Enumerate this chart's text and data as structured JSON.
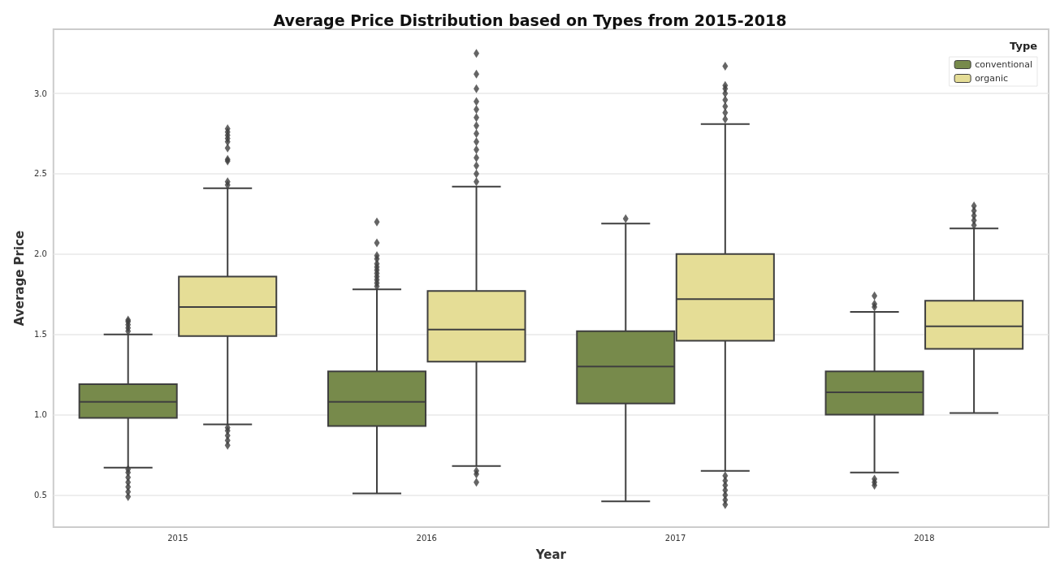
{
  "chart_data": {
    "type": "box",
    "title": "Average Price Distribution based on Types from 2015-2018",
    "xlabel": "Year",
    "ylabel": "Average Price",
    "legend_title": "Type",
    "categories": [
      "2015",
      "2016",
      "2017",
      "2018"
    ],
    "ylim": [
      0.3,
      3.4
    ],
    "yticks": [
      0.5,
      {
        "value": 1,
        "label": "1.0"
      },
      1.5,
      {
        "value": 2,
        "label": "2.0"
      },
      2.5,
      {
        "value": 3,
        "label": "3.0"
      }
    ],
    "grid": "y",
    "legend": "top right",
    "marker": "diamond",
    "series": [
      {
        "name": "conventional",
        "color": "#778a4b",
        "boxes": [
          {
            "low": 0.67,
            "q1": 0.98,
            "median": 1.08,
            "q3": 1.19,
            "high": 1.5,
            "outliers": [
              0.49,
              0.52,
              0.55,
              0.58,
              0.61,
              0.64,
              0.66,
              1.52,
              1.54,
              1.56,
              1.58,
              1.59
            ]
          },
          {
            "low": 0.51,
            "q1": 0.93,
            "median": 1.08,
            "q3": 1.27,
            "high": 1.78,
            "outliers": [
              1.8,
              1.82,
              1.84,
              1.86,
              1.88,
              1.9,
              1.92,
              1.94,
              1.97,
              1.99,
              2.07,
              2.2
            ]
          },
          {
            "low": 0.46,
            "q1": 1.07,
            "median": 1.3,
            "q3": 1.52,
            "high": 2.19,
            "outliers": [
              2.22
            ]
          },
          {
            "low": 0.64,
            "q1": 1.0,
            "median": 1.14,
            "q3": 1.27,
            "high": 1.64,
            "outliers": [
              0.56,
              0.58,
              0.6,
              1.67,
              1.69,
              1.74
            ]
          }
        ]
      },
      {
        "name": "organic",
        "color": "#e5dd96",
        "boxes": [
          {
            "low": 0.94,
            "q1": 1.49,
            "median": 1.67,
            "q3": 1.86,
            "high": 2.41,
            "outliers": [
              0.81,
              0.84,
              0.87,
              0.9,
              0.92,
              2.43,
              2.45,
              2.58,
              2.59,
              2.66,
              2.7,
              2.72,
              2.74,
              2.76,
              2.78
            ]
          },
          {
            "low": 0.68,
            "q1": 1.33,
            "median": 1.53,
            "q3": 1.77,
            "high": 2.42,
            "outliers": [
              0.58,
              0.63,
              0.65,
              2.45,
              2.5,
              2.55,
              2.6,
              2.65,
              2.7,
              2.75,
              2.8,
              2.85,
              2.9,
              2.95,
              3.03,
              3.12,
              3.25
            ]
          },
          {
            "low": 0.65,
            "q1": 1.46,
            "median": 1.72,
            "q3": 2.0,
            "high": 2.81,
            "outliers": [
              0.44,
              0.47,
              0.5,
              0.53,
              0.56,
              0.59,
              0.62,
              2.84,
              2.88,
              2.92,
              2.96,
              3.0,
              3.03,
              3.05,
              3.17
            ]
          },
          {
            "low": 1.01,
            "q1": 1.41,
            "median": 1.55,
            "q3": 1.71,
            "high": 2.16,
            "outliers": [
              2.18,
              2.21,
              2.24,
              2.27,
              2.3
            ]
          }
        ]
      }
    ]
  }
}
